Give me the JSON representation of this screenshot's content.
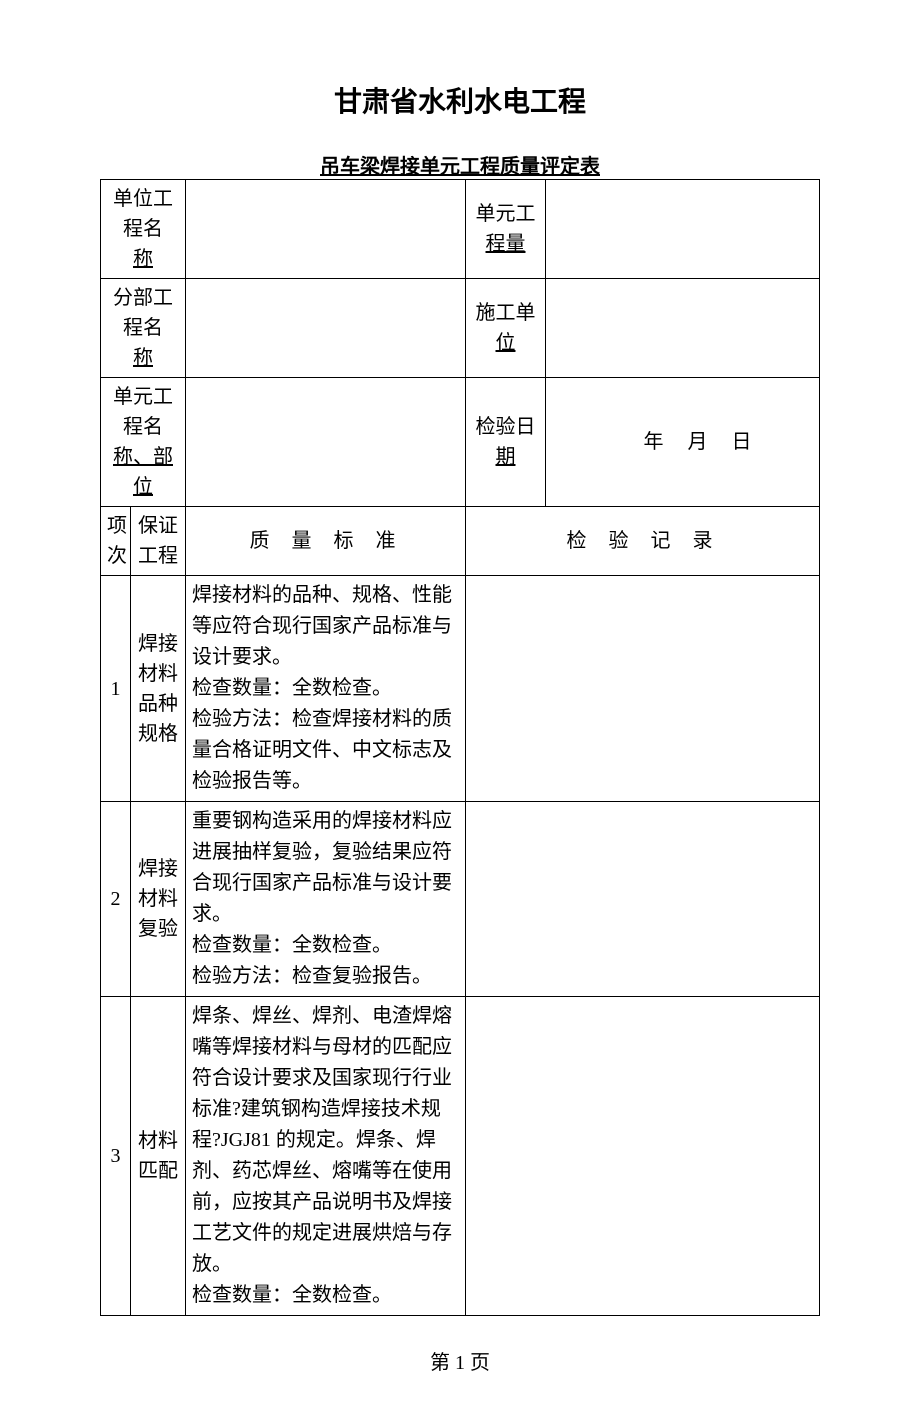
{
  "title": "甘肃省水利水电工程",
  "subtitle": "吊车梁焊接单元工程质量评定表",
  "header_rows": [
    {
      "left_line1": "单位工程名",
      "left_line2": "称",
      "right_line1": "单元工",
      "right_line2": "程量",
      "right_value": ""
    },
    {
      "left_line1": "分部工程名",
      "left_line2": "称",
      "right_line1": "施工单",
      "right_line2": "位",
      "right_value": ""
    },
    {
      "left_line1": "单元工程名",
      "left_line2": "称、部位",
      "right_line1": "检验日",
      "right_line2": "期",
      "right_value_is_date": true
    }
  ],
  "date_parts": {
    "year": "年",
    "month": "月",
    "day": "日"
  },
  "column_headers": {
    "idx_line1": "项",
    "idx_line2": "次",
    "name_line1": "保证",
    "name_line2": "工程",
    "standard": "质量标准",
    "record": "检验记录"
  },
  "rows": [
    {
      "idx": "1",
      "name": "焊接材料品种规格",
      "standard": "焊接材料的品种、规格、性能等应符合现行国家产品标准与设计要求。\n检查数量：全数检查。\n检验方法：检查焊接材料的质量合格证明文件、中文标志及检验报告等。",
      "record": ""
    },
    {
      "idx": "2",
      "name": "焊接材料复验",
      "standard": "重要钢构造采用的焊接材料应进展抽样复验，复验结果应符合现行国家产品标准与设计要求。\n检查数量：全数检查。\n检验方法：检查复验报告。",
      "record": ""
    },
    {
      "idx": "3",
      "name": "材料匹配",
      "standard": "焊条、焊丝、焊剂、电渣焊熔嘴等焊接材料与母材的匹配应符合设计要求及国家现行行业标准?建筑钢构造焊接技术规程?JGJ81 的规定。焊条、焊剂、药芯焊丝、熔嘴等在使用前，应按其产品说明书及焊接工艺文件的规定进展烘焙与存放。\n检查数量：全数检查。",
      "record": ""
    }
  ],
  "footer": "第 1 页"
}
